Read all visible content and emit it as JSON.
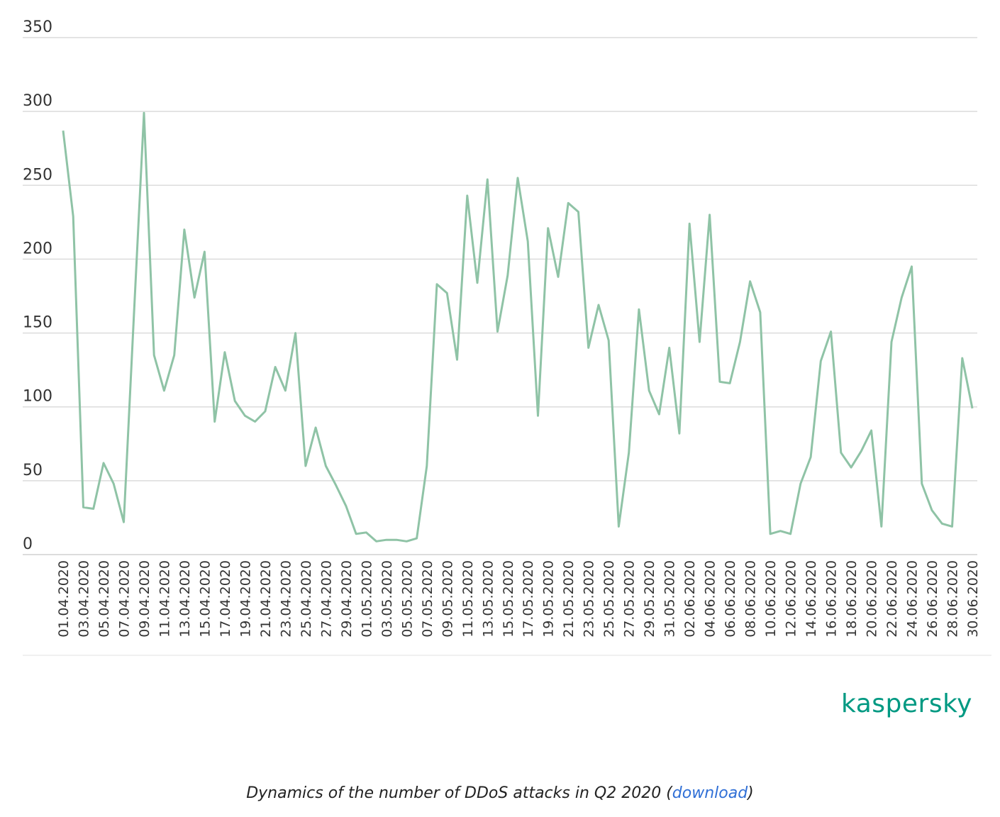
{
  "chart_data": {
    "type": "line",
    "series_color": "#8fc3a6",
    "ylim": [
      0,
      350
    ],
    "yticks": [
      0,
      50,
      100,
      150,
      200,
      250,
      300,
      350
    ],
    "x": [
      "01.04.2020",
      "02.04.2020",
      "03.04.2020",
      "04.04.2020",
      "05.04.2020",
      "06.04.2020",
      "07.04.2020",
      "08.04.2020",
      "09.04.2020",
      "10.04.2020",
      "11.04.2020",
      "12.04.2020",
      "13.04.2020",
      "14.04.2020",
      "15.04.2020",
      "16.04.2020",
      "17.04.2020",
      "18.04.2020",
      "19.04.2020",
      "20.04.2020",
      "21.04.2020",
      "22.04.2020",
      "23.04.2020",
      "24.04.2020",
      "25.04.2020",
      "26.04.2020",
      "27.04.2020",
      "28.04.2020",
      "29.04.2020",
      "30.04.2020",
      "01.05.2020",
      "02.05.2020",
      "03.05.2020",
      "04.05.2020",
      "05.05.2020",
      "06.05.2020",
      "07.05.2020",
      "08.05.2020",
      "09.05.2020",
      "10.05.2020",
      "11.05.2020",
      "12.05.2020",
      "13.05.2020",
      "14.05.2020",
      "15.05.2020",
      "16.05.2020",
      "17.05.2020",
      "18.05.2020",
      "19.05.2020",
      "20.05.2020",
      "21.05.2020",
      "22.05.2020",
      "23.05.2020",
      "24.05.2020",
      "25.05.2020",
      "26.05.2020",
      "27.05.2020",
      "28.05.2020",
      "29.05.2020",
      "30.05.2020",
      "31.05.2020",
      "01.06.2020",
      "02.06.2020",
      "03.06.2020",
      "04.06.2020",
      "05.06.2020",
      "06.06.2020",
      "07.06.2020",
      "08.06.2020",
      "09.06.2020",
      "10.06.2020",
      "11.06.2020",
      "12.06.2020",
      "13.06.2020",
      "14.06.2020",
      "15.06.2020",
      "16.06.2020",
      "17.06.2020",
      "18.06.2020",
      "19.06.2020",
      "20.06.2020",
      "21.06.2020",
      "22.06.2020",
      "23.06.2020",
      "24.06.2020",
      "25.06.2020",
      "26.06.2020",
      "27.06.2020",
      "28.06.2020",
      "29.06.2020",
      "30.06.2020"
    ],
    "xtick_labels": [
      "01.04.2020",
      "03.04.2020",
      "05.04.2020",
      "07.04.2020",
      "09.04.2020",
      "11.04.2020",
      "13.04.2020",
      "15.04.2020",
      "17.04.2020",
      "19.04.2020",
      "21.04.2020",
      "23.04.2020",
      "25.04.2020",
      "27.04.2020",
      "29.04.2020",
      "01.05.2020",
      "03.05.2020",
      "05.05.2020",
      "07.05.2020",
      "09.05.2020",
      "11.05.2020",
      "13.05.2020",
      "15.05.2020",
      "17.05.2020",
      "19.05.2020",
      "21.05.2020",
      "23.05.2020",
      "25.05.2020",
      "27.05.2020",
      "29.05.2020",
      "31.05.2020",
      "02.06.2020",
      "04.06.2020",
      "06.06.2020",
      "08.06.2020",
      "10.06.2020",
      "12.06.2020",
      "14.06.2020",
      "16.06.2020",
      "18.06.2020",
      "20.06.2020",
      "22.06.2020",
      "24.06.2020",
      "26.06.2020",
      "28.06.2020",
      "30.06.2020"
    ],
    "series": [
      {
        "values": [
          287,
          229,
          32,
          31,
          62,
          48,
          22,
          161,
          299,
          135,
          111,
          135,
          220,
          174,
          205,
          90,
          137,
          104,
          94,
          90,
          97,
          127,
          111,
          150,
          60,
          86,
          60,
          47,
          33,
          14,
          15,
          9,
          10,
          10,
          9,
          11,
          60,
          183,
          177,
          132,
          243,
          184,
          254,
          151,
          189,
          255,
          212,
          94,
          221,
          188,
          238,
          232,
          140,
          169,
          145,
          19,
          69,
          166,
          111,
          95,
          140,
          82,
          224,
          144,
          230,
          117,
          116,
          144,
          185,
          164,
          14,
          16,
          14,
          48,
          66,
          131,
          151,
          69,
          59,
          70,
          84,
          19,
          144,
          174,
          195,
          48,
          30,
          21,
          19,
          133,
          99
        ]
      }
    ]
  },
  "brand": {
    "logo_text": "kaspersky"
  },
  "caption": {
    "prefix": "Dynamics of the number of DDoS attacks in Q2 2020 (",
    "link_text": "download",
    "suffix": ")"
  }
}
